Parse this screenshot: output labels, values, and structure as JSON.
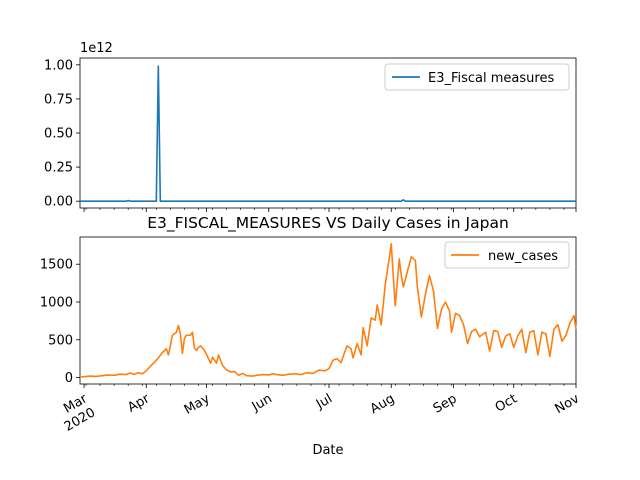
{
  "chart_data": [
    {
      "type": "line",
      "title": "",
      "offset_text": "1e12",
      "xlabel": "",
      "ylabel": "",
      "ylim": [
        -0.05,
        1.05
      ],
      "yticks": [
        0.0,
        0.25,
        0.5,
        0.75,
        1.0
      ],
      "ytick_labels": [
        "0.00",
        "0.25",
        "0.50",
        "0.75",
        "1.00"
      ],
      "x_range": [
        "2020-02-28",
        "2020-11-01"
      ],
      "legend_position": "upper right",
      "series": [
        {
          "name": "E3_Fiscal measures",
          "color": "#1f77b4",
          "units": "1e12",
          "points": [
            [
              "2020-02-28",
              0
            ],
            [
              "2020-03-22",
              0
            ],
            [
              "2020-03-23",
              0.005
            ],
            [
              "2020-03-24",
              0
            ],
            [
              "2020-04-06",
              0
            ],
            [
              "2020-04-07",
              0.99
            ],
            [
              "2020-04-08",
              0
            ],
            [
              "2020-08-06",
              0
            ],
            [
              "2020-08-07",
              0.01
            ],
            [
              "2020-08-08",
              0
            ],
            [
              "2020-11-01",
              0
            ]
          ]
        }
      ]
    },
    {
      "type": "line",
      "title": "E3_FISCAL_MEASURES VS Daily Cases in Japan",
      "xlabel": "Date",
      "ylabel": "",
      "ylim": [
        -85,
        1860
      ],
      "yticks": [
        0,
        500,
        1000,
        1500
      ],
      "ytick_labels": [
        "0",
        "500",
        "1000",
        "1500"
      ],
      "x_range": [
        "2020-02-28",
        "2020-11-01"
      ],
      "xticks": [
        "2020-03-01",
        "2020-04-01",
        "2020-05-01",
        "2020-06-01",
        "2020-07-01",
        "2020-08-01",
        "2020-09-01",
        "2020-10-01",
        "2020-11-01"
      ],
      "xtick_labels": [
        "Mar\n2020",
        "Apr",
        "May",
        "Jun",
        "Jul",
        "Aug",
        "Sep",
        "Oct",
        "Nov"
      ],
      "legend_position": "upper right",
      "series": [
        {
          "name": "new_cases",
          "color": "#ff7f0e",
          "points": [
            [
              "2020-02-28",
              10
            ],
            [
              "2020-03-01",
              12
            ],
            [
              "2020-03-04",
              20
            ],
            [
              "2020-03-07",
              15
            ],
            [
              "2020-03-10",
              25
            ],
            [
              "2020-03-13",
              35
            ],
            [
              "2020-03-16",
              30
            ],
            [
              "2020-03-19",
              45
            ],
            [
              "2020-03-22",
              40
            ],
            [
              "2020-03-24",
              60
            ],
            [
              "2020-03-26",
              40
            ],
            [
              "2020-03-28",
              65
            ],
            [
              "2020-03-30",
              50
            ],
            [
              "2020-04-01",
              90
            ],
            [
              "2020-04-03",
              150
            ],
            [
              "2020-04-05",
              200
            ],
            [
              "2020-04-07",
              260
            ],
            [
              "2020-04-09",
              330
            ],
            [
              "2020-04-11",
              380
            ],
            [
              "2020-04-12",
              300
            ],
            [
              "2020-04-13",
              420
            ],
            [
              "2020-04-14",
              560
            ],
            [
              "2020-04-16",
              600
            ],
            [
              "2020-04-17",
              690
            ],
            [
              "2020-04-18",
              580
            ],
            [
              "2020-04-19",
              320
            ],
            [
              "2020-04-20",
              520
            ],
            [
              "2020-04-21",
              560
            ],
            [
              "2020-04-23",
              560
            ],
            [
              "2020-04-24",
              600
            ],
            [
              "2020-04-25",
              390
            ],
            [
              "2020-04-26",
              360
            ],
            [
              "2020-04-27",
              400
            ],
            [
              "2020-04-28",
              420
            ],
            [
              "2020-04-30",
              360
            ],
            [
              "2020-05-02",
              250
            ],
            [
              "2020-05-03",
              190
            ],
            [
              "2020-05-04",
              270
            ],
            [
              "2020-05-06",
              190
            ],
            [
              "2020-05-07",
              300
            ],
            [
              "2020-05-09",
              160
            ],
            [
              "2020-05-11",
              100
            ],
            [
              "2020-05-13",
              75
            ],
            [
              "2020-05-15",
              80
            ],
            [
              "2020-05-17",
              30
            ],
            [
              "2020-05-19",
              55
            ],
            [
              "2020-05-21",
              25
            ],
            [
              "2020-05-24",
              20
            ],
            [
              "2020-05-26",
              30
            ],
            [
              "2020-05-29",
              40
            ],
            [
              "2020-06-01",
              35
            ],
            [
              "2020-06-03",
              50
            ],
            [
              "2020-06-05",
              40
            ],
            [
              "2020-06-08",
              30
            ],
            [
              "2020-06-11",
              45
            ],
            [
              "2020-06-14",
              50
            ],
            [
              "2020-06-17",
              40
            ],
            [
              "2020-06-20",
              65
            ],
            [
              "2020-06-23",
              55
            ],
            [
              "2020-06-26",
              100
            ],
            [
              "2020-06-29",
              90
            ],
            [
              "2020-07-01",
              120
            ],
            [
              "2020-07-03",
              230
            ],
            [
              "2020-07-05",
              250
            ],
            [
              "2020-07-07",
              200
            ],
            [
              "2020-07-09",
              350
            ],
            [
              "2020-07-10",
              420
            ],
            [
              "2020-07-12",
              380
            ],
            [
              "2020-07-13",
              260
            ],
            [
              "2020-07-15",
              450
            ],
            [
              "2020-07-17",
              300
            ],
            [
              "2020-07-18",
              660
            ],
            [
              "2020-07-20",
              420
            ],
            [
              "2020-07-22",
              790
            ],
            [
              "2020-07-24",
              760
            ],
            [
              "2020-07-25",
              960
            ],
            [
              "2020-07-27",
              700
            ],
            [
              "2020-07-29",
              1230
            ],
            [
              "2020-07-31",
              1580
            ],
            [
              "2020-08-01",
              1770
            ],
            [
              "2020-08-02",
              1340
            ],
            [
              "2020-08-03",
              950
            ],
            [
              "2020-08-05",
              1570
            ],
            [
              "2020-08-06",
              1350
            ],
            [
              "2020-08-07",
              1200
            ],
            [
              "2020-08-09",
              1400
            ],
            [
              "2020-08-11",
              1600
            ],
            [
              "2020-08-13",
              1550
            ],
            [
              "2020-08-14",
              1200
            ],
            [
              "2020-08-16",
              800
            ],
            [
              "2020-08-18",
              1100
            ],
            [
              "2020-08-20",
              1350
            ],
            [
              "2020-08-22",
              1150
            ],
            [
              "2020-08-24",
              650
            ],
            [
              "2020-08-26",
              900
            ],
            [
              "2020-08-28",
              1000
            ],
            [
              "2020-08-30",
              880
            ],
            [
              "2020-08-31",
              600
            ],
            [
              "2020-09-02",
              850
            ],
            [
              "2020-09-04",
              820
            ],
            [
              "2020-09-06",
              700
            ],
            [
              "2020-09-08",
              450
            ],
            [
              "2020-09-10",
              610
            ],
            [
              "2020-09-12",
              640
            ],
            [
              "2020-09-14",
              540
            ],
            [
              "2020-09-17",
              600
            ],
            [
              "2020-09-19",
              350
            ],
            [
              "2020-09-21",
              620
            ],
            [
              "2020-09-23",
              610
            ],
            [
              "2020-09-25",
              400
            ],
            [
              "2020-09-27",
              550
            ],
            [
              "2020-09-29",
              580
            ],
            [
              "2020-10-01",
              400
            ],
            [
              "2020-10-03",
              550
            ],
            [
              "2020-10-05",
              640
            ],
            [
              "2020-10-07",
              330
            ],
            [
              "2020-10-09",
              600
            ],
            [
              "2020-10-11",
              620
            ],
            [
              "2020-10-13",
              300
            ],
            [
              "2020-10-15",
              600
            ],
            [
              "2020-10-17",
              580
            ],
            [
              "2020-10-19",
              280
            ],
            [
              "2020-10-21",
              640
            ],
            [
              "2020-10-23",
              700
            ],
            [
              "2020-10-25",
              480
            ],
            [
              "2020-10-27",
              560
            ],
            [
              "2020-10-29",
              720
            ],
            [
              "2020-10-31",
              820
            ],
            [
              "2020-11-01",
              640
            ]
          ]
        }
      ]
    }
  ]
}
